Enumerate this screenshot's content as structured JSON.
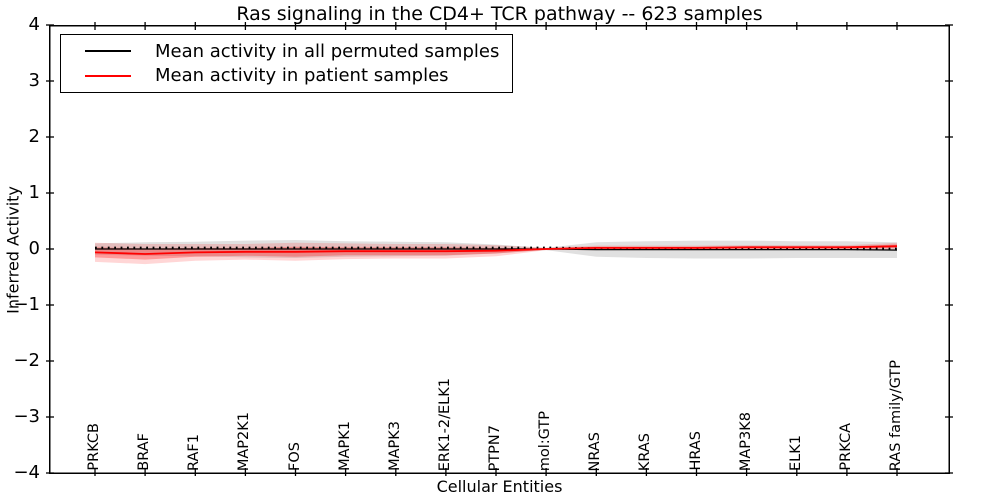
{
  "figure": {
    "title": "Ras signaling in the CD4+ TCR pathway -- 623 samples",
    "xlabel": "Cellular Entities",
    "ylabel": "Inferred Activity"
  },
  "legend": {
    "items": [
      {
        "label": "Mean activity in all permuted samples",
        "color": "#000000"
      },
      {
        "label": "Mean activity in patient samples",
        "color": "#ff0000"
      }
    ]
  },
  "axes": {
    "ytick_labels": [
      "4",
      "3",
      "2",
      "1",
      "0",
      "−1",
      "−2",
      "−3",
      "−4"
    ],
    "ytick_values": [
      4,
      3,
      2,
      1,
      0,
      -1,
      -2,
      -3,
      -4
    ]
  },
  "chart_data": {
    "type": "line",
    "title": "Ras signaling in the CD4+ TCR pathway -- 623 samples",
    "xlabel": "Cellular Entities",
    "ylabel": "Inferred Activity",
    "ylim": [
      -4,
      4
    ],
    "grid": false,
    "legend_position": "upper left",
    "categories": [
      "PRKCB",
      "BRAF",
      "RAF1",
      "MAP2K1",
      "FOS",
      "MAPK1",
      "MAPK3",
      "ERK1-2/ELK1",
      "PTPN7",
      "mol:GTP",
      "NRAS",
      "KRAS",
      "HRAS",
      "MAP3K8",
      "ELK1",
      "PRKCA",
      "RAS family/GTP"
    ],
    "series": [
      {
        "name": "Mean activity in all permuted samples",
        "color": "#000000",
        "line_style": "solid-with-dot-markers",
        "values": [
          0.0,
          0.0,
          0.0,
          0.0,
          0.0,
          0.0,
          0.0,
          0.0,
          0.0,
          0.0,
          -0.01,
          -0.01,
          -0.01,
          -0.01,
          -0.01,
          -0.01,
          -0.02
        ],
        "band_halfwidth": [
          0.1,
          0.12,
          0.13,
          0.15,
          0.16,
          0.14,
          0.13,
          0.12,
          0.08,
          0.02,
          0.13,
          0.15,
          0.16,
          0.16,
          0.15,
          0.15,
          0.14
        ],
        "band_color": "rgba(0,0,0,0.12)"
      },
      {
        "name": "Mean activity in patient samples",
        "color": "#ff0000",
        "line_style": "solid",
        "values": [
          -0.06,
          -0.09,
          -0.06,
          -0.05,
          -0.05,
          -0.04,
          -0.04,
          -0.04,
          -0.03,
          0.0,
          0.02,
          0.02,
          0.02,
          0.03,
          0.03,
          0.03,
          0.05
        ],
        "band_outer_halfwidth": [
          0.17,
          0.18,
          0.15,
          0.14,
          0.16,
          0.14,
          0.13,
          0.13,
          0.1,
          0.02,
          0.04,
          0.04,
          0.04,
          0.04,
          0.04,
          0.04,
          0.06
        ],
        "band_inner_halfwidth": [
          0.09,
          0.1,
          0.08,
          0.07,
          0.09,
          0.07,
          0.07,
          0.07,
          0.05,
          0.01,
          0.02,
          0.02,
          0.02,
          0.02,
          0.02,
          0.02,
          0.03
        ],
        "band_outer_color": "rgba(255,0,0,0.16)",
        "band_inner_color": "rgba(255,0,0,0.28)"
      }
    ]
  }
}
